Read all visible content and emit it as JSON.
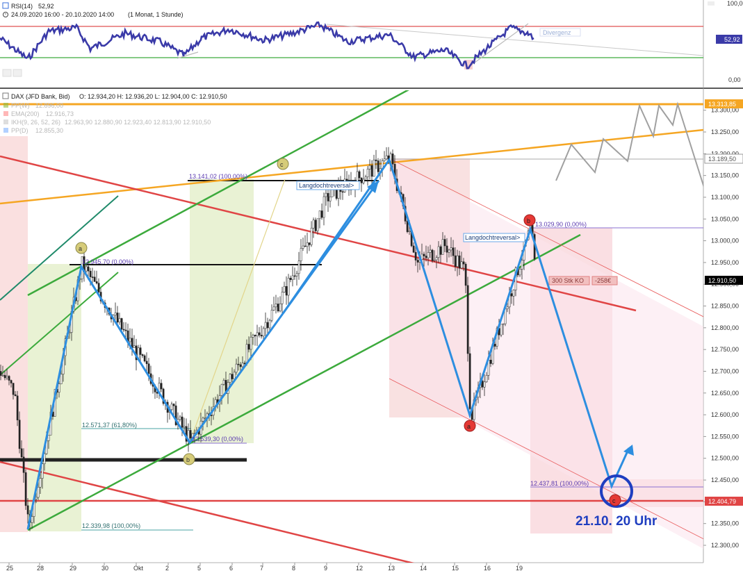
{
  "rsi_panel": {
    "indicator_label": "RSI(14)",
    "indicator_value": "52,92",
    "date_range": "24.09.2020 16:00 - 20.10.2020 14:00",
    "range_info": "(1 Monat, 1 Stunde)",
    "divergence_label": "Divergenz",
    "axis_ticks": [
      "100,00",
      "0,00"
    ],
    "current_badge": "52,92"
  },
  "main_panel": {
    "instrument": "DAX (JFD Bank, Bid)",
    "ohlc": "O: 12.934,20  H: 12.936,20  L: 12.904,00  C: 12.910,50",
    "legend": [
      {
        "label": "PP(W)",
        "value": "12.896,00",
        "color": "#8fbc3f"
      },
      {
        "label": "EMA(200)",
        "value": "12.916,73",
        "color": "#ff7070"
      },
      {
        "label": "IKH(9, 26, 52, 26)",
        "value": "12.963,90  12.880,90  12.923,40  12.813,90  12.910,50",
        "color": "#c8c8c8"
      },
      {
        "label": "PP(D)",
        "value": "12.855,30",
        "color": "#7fb0ff"
      }
    ],
    "annotations": {
      "fib_high_1": "13.141,02 (100,00%)",
      "fib_low_0": "12.945,70 (0,00%)",
      "fib_618": "12.571,37 (61,80%)",
      "fib_low_b": "12.539,30 (0,00%)",
      "fib_bottom": "12.339,98 (100,00%)",
      "fib_b2": "13.029,90 (0,00%)",
      "fib_target": "12.437,81 (100,00%)",
      "reversal_1": "Langdochtreversal>",
      "reversal_2": "Langdochtreversal>",
      "order_label": "300 Stk KO",
      "order_value": "-258€",
      "target_text": "21.10. 20 Uhr"
    },
    "wave_labels": [
      "a",
      "b",
      "c",
      "a",
      "b",
      "c"
    ],
    "price_badges": [
      {
        "text": "13.313,85",
        "bg": "#f5a623",
        "fg": "#ffffff"
      },
      {
        "text": "13.189,50",
        "bg": "#ffffff",
        "fg": "#555555"
      },
      {
        "text": "12.910,50",
        "bg": "#000000",
        "fg": "#ffffff"
      },
      {
        "text": "12.404,79",
        "bg": "#e04545",
        "fg": "#ffffff"
      }
    ],
    "x_labels": [
      "25",
      "28",
      "29",
      "30",
      "Okt",
      "2",
      "5",
      "6",
      "7",
      "8",
      "9",
      "12",
      "13",
      "14",
      "15",
      "16",
      "19"
    ]
  },
  "chart_data": {
    "type": "line",
    "title": "DAX (JFD Bank, Bid)",
    "ylim": [
      12290,
      13360
    ],
    "y_ticks": [
      13300,
      13250,
      13200,
      13150,
      13100,
      13050,
      13000,
      12950,
      12900,
      12850,
      12800,
      12750,
      12700,
      12650,
      12600,
      12550,
      12500,
      12450,
      12400,
      12350,
      12300
    ],
    "key_levels": [
      {
        "name": "resistance",
        "value": 13313.85,
        "color": "#f5a623"
      },
      {
        "name": "level",
        "value": 13189.5,
        "color": "#b0b0b0"
      },
      {
        "name": "last",
        "value": 12910.5,
        "color": "#000000"
      },
      {
        "name": "support",
        "value": 12404.79,
        "color": "#e04545"
      }
    ],
    "series": [
      {
        "values": [
          12339.98,
          12945.7,
          12539.3,
          13141.02,
          13189.5,
          12590,
          13029.9,
          12404.79
        ]
      }
    ],
    "rsi": {
      "value": 52.92,
      "ylim": [
        0,
        100
      ],
      "overbought": 70,
      "oversold": 30
    }
  }
}
